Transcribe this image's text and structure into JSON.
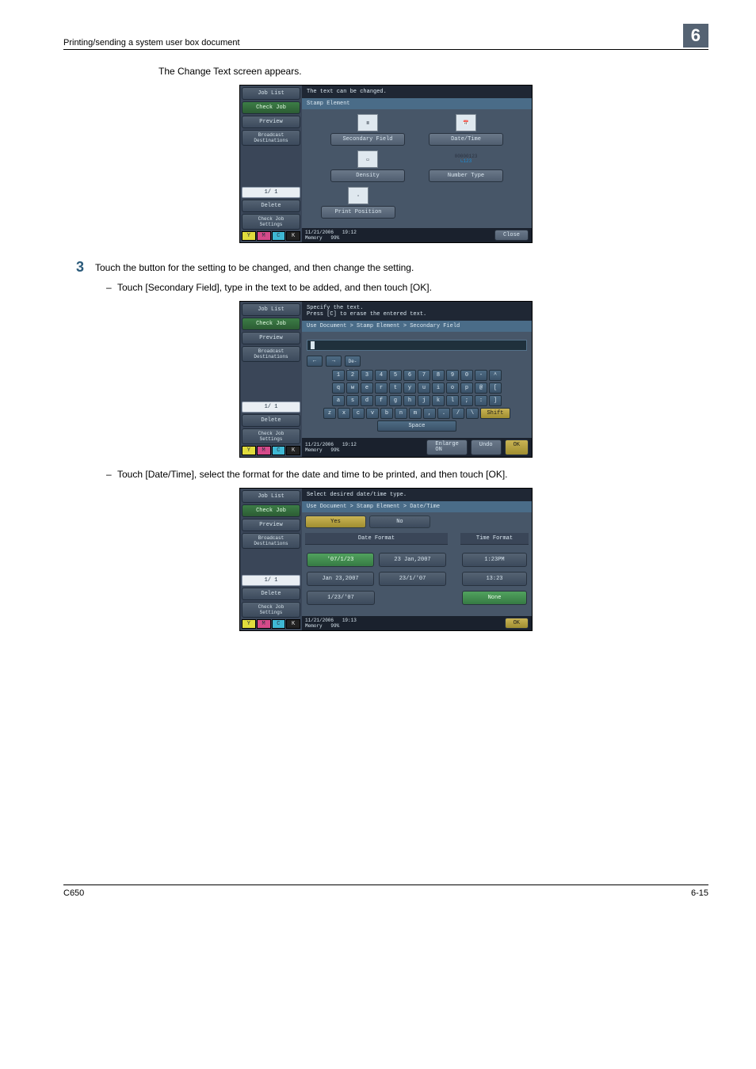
{
  "header": {
    "title": "Printing/sending a system user box document",
    "chapter": "6"
  },
  "intro": "The Change Text screen appears.",
  "step": {
    "num": "3",
    "text": "Touch the button for the setting to be changed, and then change the setting."
  },
  "sub1": "Touch [Secondary Field], type in the text to be added, and then touch [OK].",
  "sub2": "Touch [Date/Time], select the format for the date and time to be printed, and then touch [OK].",
  "side": {
    "job_list": "Job List",
    "check_job": "Check Job",
    "preview": "Preview",
    "broadcast": "Broadcast\nDestinations",
    "pager": "1/  1",
    "delete": "Delete",
    "check_settings": "Check Job\nSettings",
    "toner": {
      "y": "Y",
      "m": "M",
      "c": "C",
      "k": "K"
    }
  },
  "panel1": {
    "top": "The text can be changed.",
    "bc": "Stamp Element",
    "tiles": {
      "r1a": "Secondary Field",
      "r1b": "Date/Time",
      "r2a": "Density",
      "r2b": "Number Type",
      "r3a": "Print Position"
    },
    "icon_r2b_top": "00000123",
    "icon_r2b_bot": "123",
    "foot_date": "11/21/2006",
    "foot_time": "19:12",
    "foot_mem_lbl": "Memory",
    "foot_mem_val": "99%",
    "close": "Close"
  },
  "panel2": {
    "top1": "Specify the text.",
    "top2": "Press [C] to erase the entered text.",
    "bc": "Use Document > Stamp Element > Secondary Field",
    "delete_key": "De-\nlete",
    "shift": "Shift",
    "space": "Space",
    "enlarge": "Enlarge\nON",
    "undo": "Undo",
    "ok": "OK",
    "rows": {
      "r1": [
        "1",
        "2",
        "3",
        "4",
        "5",
        "6",
        "7",
        "8",
        "9",
        "0",
        "-",
        "^"
      ],
      "r2": [
        "q",
        "w",
        "e",
        "r",
        "t",
        "y",
        "u",
        "i",
        "o",
        "p",
        "@",
        "["
      ],
      "r3": [
        "a",
        "s",
        "d",
        "f",
        "g",
        "h",
        "j",
        "k",
        "l",
        ";",
        ":",
        "]"
      ],
      "r4": [
        "z",
        "x",
        "c",
        "v",
        "b",
        "n",
        "m",
        ",",
        ".",
        "/",
        "\\"
      ]
    },
    "foot_date": "11/21/2006",
    "foot_time": "19:12",
    "foot_mem_lbl": "Memory",
    "foot_mem_val": "99%"
  },
  "panel3": {
    "top": "Select desired date/time type.",
    "bc": "Use Document > Stamp Element > Date/Time",
    "yes": "Yes",
    "no": "No",
    "date_head": "Date Format",
    "time_head": "Time Format",
    "date_btns": [
      "'07/1/23",
      "23 Jan,2007",
      "Jan 23,2007",
      "23/1/'07",
      "1/23/'07"
    ],
    "time_btns": [
      "1:23PM",
      "13:23",
      "None"
    ],
    "date_selected": 0,
    "time_selected": 2,
    "ok": "OK",
    "foot_date": "11/21/2006",
    "foot_time": "19:13",
    "foot_mem_lbl": "Memory",
    "foot_mem_val": "99%"
  },
  "footer": {
    "left": "C650",
    "right": "6-15"
  }
}
